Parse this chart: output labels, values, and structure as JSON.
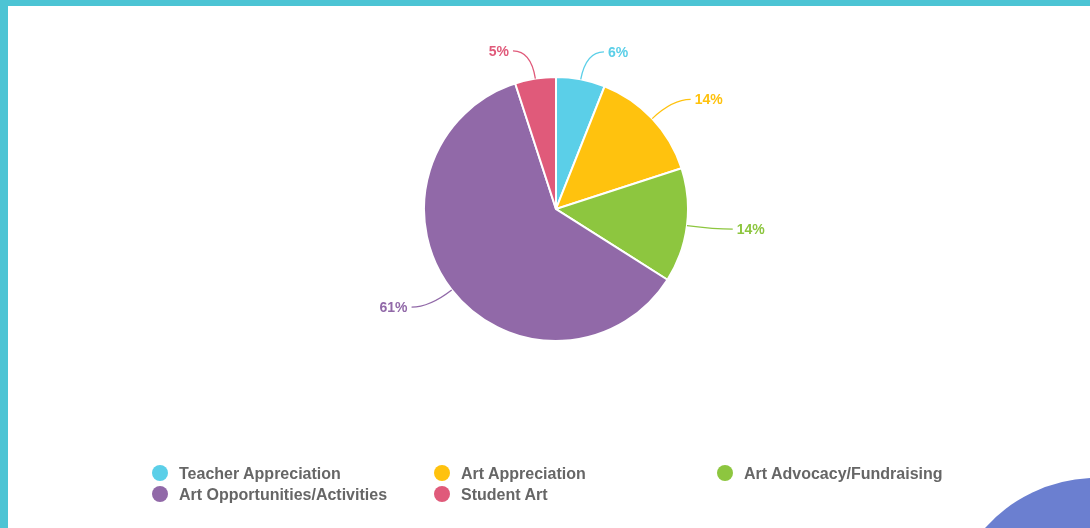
{
  "chart_data": {
    "type": "pie",
    "categories": [
      "Teacher Appreciation",
      "Art Appreciation",
      "Art Advocacy/Fundraising",
      "Art Opportunities/Activities",
      "Student Art"
    ],
    "values": [
      6,
      14,
      14,
      61,
      5
    ],
    "colors": [
      "#5bcfe8",
      "#ffc20e",
      "#8dc63f",
      "#9169a8",
      "#e05a7a"
    ],
    "value_labels": [
      "6%",
      "14%",
      "14%",
      "61%",
      "5%"
    ],
    "legend": "bottom"
  }
}
